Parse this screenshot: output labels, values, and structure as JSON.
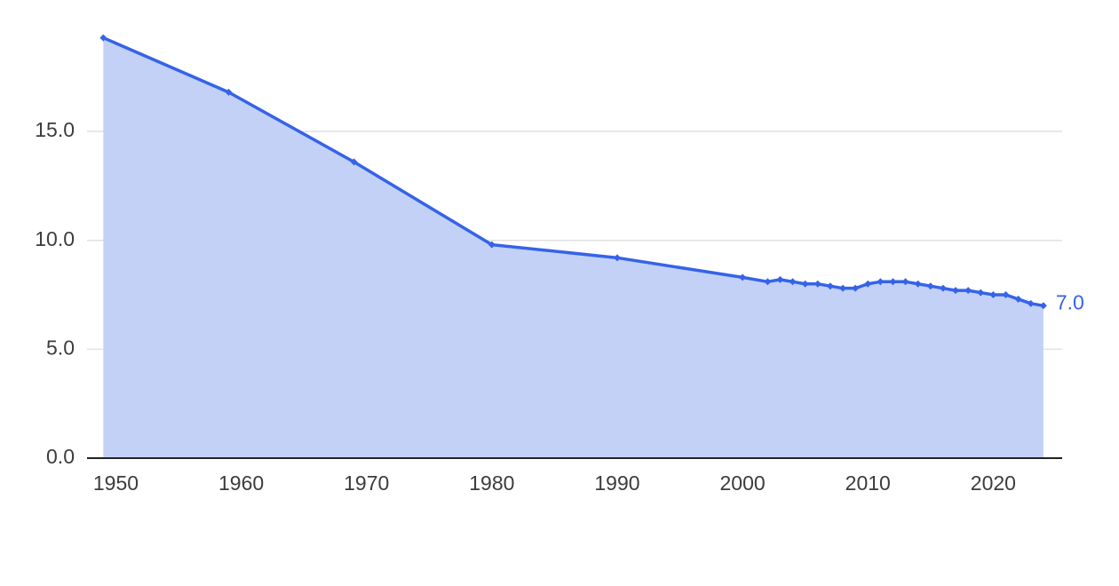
{
  "chart_data": {
    "type": "area",
    "x": [
      1949,
      1959,
      1969,
      1980,
      1990,
      2000,
      2002,
      2003,
      2004,
      2005,
      2006,
      2007,
      2008,
      2009,
      2010,
      2011,
      2012,
      2013,
      2014,
      2015,
      2016,
      2017,
      2018,
      2019,
      2020,
      2021,
      2022,
      2023,
      2024
    ],
    "values": [
      19.3,
      16.8,
      13.6,
      9.8,
      9.2,
      8.3,
      8.1,
      8.2,
      8.1,
      8.0,
      8.0,
      7.9,
      7.8,
      7.8,
      8.0,
      8.1,
      8.1,
      8.1,
      8.0,
      7.9,
      7.8,
      7.7,
      7.7,
      7.6,
      7.5,
      7.5,
      7.3,
      7.1,
      7.0
    ],
    "value_labels": [
      null,
      null,
      null,
      null,
      null,
      null,
      null,
      null,
      null,
      null,
      null,
      null,
      null,
      null,
      null,
      null,
      null,
      null,
      null,
      null,
      null,
      null,
      null,
      null,
      null,
      null,
      null,
      null,
      "7.0"
    ],
    "color": "#3563e9",
    "fill": "#c3d1f7",
    "xlim": [
      1947.7,
      2025.5
    ],
    "xticks": [
      1950,
      1960,
      1970,
      1980,
      1990,
      2000,
      2010,
      2020
    ],
    "ylim": [
      0,
      20
    ],
    "yticks": [
      {
        "value": 0,
        "label": "0.0"
      },
      {
        "value": 5,
        "label": "5.0"
      },
      {
        "value": 10,
        "label": "10.0"
      },
      {
        "value": 15,
        "label": "15.0"
      }
    ],
    "grid": true
  }
}
